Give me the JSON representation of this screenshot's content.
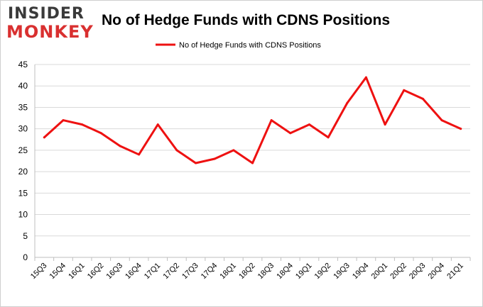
{
  "logo": {
    "line1": "INSIDER",
    "line2": "MONKEY"
  },
  "chart_data": {
    "type": "line",
    "title": "No of Hedge Funds with CDNS Positions",
    "xlabel": "",
    "ylabel": "",
    "categories": [
      "15Q3",
      "15Q4",
      "16Q1",
      "16Q2",
      "16Q3",
      "16Q4",
      "17Q1",
      "17Q2",
      "17Q3",
      "17Q4",
      "18Q1",
      "18Q2",
      "18Q3",
      "18Q4",
      "19Q1",
      "19Q2",
      "19Q3",
      "19Q4",
      "20Q1",
      "20Q2",
      "20Q3",
      "20Q4",
      "21Q1"
    ],
    "series": [
      {
        "name": "No of Hedge Funds with CDNS Positions",
        "values": [
          28,
          32,
          31,
          29,
          26,
          24,
          31,
          25,
          22,
          23,
          25,
          22,
          32,
          29,
          31,
          28,
          36,
          42,
          31,
          39,
          37,
          32,
          30
        ]
      }
    ],
    "ylim": [
      0,
      45
    ],
    "yticks": [
      0,
      5,
      10,
      15,
      20,
      25,
      30,
      35,
      40,
      45
    ],
    "grid": true,
    "legend_position": "top-center",
    "colors": {
      "line": "#ee1111",
      "grid": "#d9d9d9",
      "axis": "#bfbfbf",
      "text": "#000000"
    }
  }
}
